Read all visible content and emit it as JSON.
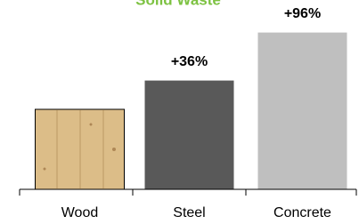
{
  "chart_data": {
    "type": "bar",
    "title": "Solid Waste",
    "categories": [
      "Wood",
      "Steel",
      "Concrete"
    ],
    "values": [
      0,
      36,
      96
    ],
    "value_labels": [
      null,
      "+36%",
      "+96%"
    ],
    "colors": [
      "#dcbd88",
      "#595959",
      "#bfbfbf"
    ],
    "ylim": [
      -100,
      100
    ]
  }
}
